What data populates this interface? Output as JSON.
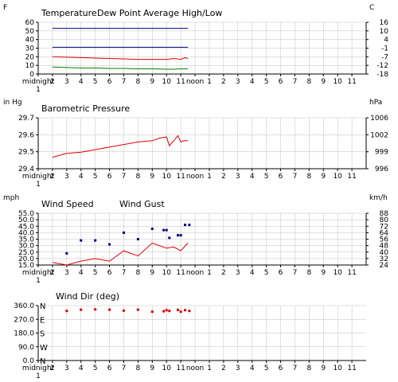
{
  "colors": {
    "red": "#e00000",
    "green": "#008000",
    "blue": "#000080",
    "grid": "#c0c0c0",
    "axis": "#000000"
  },
  "x_axis": {
    "ticks": [
      "midnight",
      "2",
      "3",
      "4",
      "5",
      "6",
      "7",
      "8",
      "9",
      "10",
      "11",
      "noon",
      "1",
      "2",
      "3",
      "4",
      "5",
      "6",
      "7",
      "8",
      "9",
      "10",
      "11"
    ],
    "sub_label": "1",
    "xlim": [
      0,
      23
    ]
  },
  "chart_data": [
    {
      "type": "line",
      "left_unit": "F",
      "right_unit": "C",
      "legend": [
        "Temperature",
        "Dew Point",
        "Average High/Low"
      ],
      "ylim": [
        0,
        60
      ],
      "y_ticks": [
        "0",
        "10",
        "20",
        "30",
        "40",
        "50",
        "60"
      ],
      "y_ticks_right": [
        "-18",
        "-12",
        "-7",
        "-1",
        "4",
        "10",
        "16"
      ],
      "series": [
        {
          "name": "Temperature",
          "x": [
            1,
            2,
            3,
            4,
            5,
            6,
            7,
            8,
            9,
            9.5,
            10,
            10.3,
            10.5
          ],
          "values": [
            20,
            19.5,
            19,
            18.5,
            18,
            17.5,
            17,
            17,
            17,
            18,
            17,
            19,
            18
          ]
        },
        {
          "name": "Dew Point",
          "x": [
            1,
            2,
            3,
            4,
            5,
            6,
            7,
            8,
            9,
            9.5,
            10,
            10.5
          ],
          "values": [
            8,
            7.5,
            7,
            7,
            6.5,
            6.5,
            6,
            6,
            5.5,
            5.5,
            6,
            6
          ]
        },
        {
          "name": "Average High",
          "x": [
            1,
            10.5
          ],
          "values": [
            53,
            53
          ]
        },
        {
          "name": "Average Low",
          "x": [
            1,
            10.5
          ],
          "values": [
            31,
            31
          ]
        }
      ]
    },
    {
      "type": "line",
      "left_unit": "in Hg",
      "right_unit": "hPa",
      "legend": [
        "Barometric Pressure"
      ],
      "ylim": [
        29.4,
        29.8
      ],
      "y_ticks": [
        "29.4",
        "29.5",
        "29.6",
        "29.7"
      ],
      "y_ticks_right": [
        "996",
        "999",
        "1002",
        "1006"
      ],
      "series": [
        {
          "name": "Barometric Pressure",
          "x": [
            1,
            2,
            3,
            4,
            5,
            6,
            7,
            8,
            8.5,
            9,
            9.2,
            9.5,
            9.8,
            10,
            10.2,
            10.5
          ],
          "values": [
            29.49,
            29.52,
            29.53,
            29.55,
            29.57,
            29.59,
            29.61,
            29.62,
            29.64,
            29.65,
            29.58,
            29.62,
            29.66,
            29.61,
            29.62,
            29.62
          ]
        }
      ]
    },
    {
      "type": "line+scatter",
      "left_unit": "mph",
      "right_unit": "km/h",
      "legend": [
        "Wind Speed",
        "Wind Gust"
      ],
      "ylim": [
        15,
        55
      ],
      "y_ticks": [
        "15.0",
        "20.0",
        "25.0",
        "30.0",
        "35.0",
        "40.0",
        "45.0",
        "50.0",
        "55.0"
      ],
      "y_ticks_right": [
        "24",
        "32",
        "40",
        "48",
        "56",
        "64",
        "72",
        "80",
        "88"
      ],
      "series": [
        {
          "name": "Wind Speed",
          "x": [
            1,
            2,
            3,
            4,
            5,
            6,
            7,
            8,
            9,
            9.5,
            10,
            10.5
          ],
          "values": [
            17,
            15,
            18,
            20,
            18,
            26,
            22,
            32,
            28,
            29,
            26,
            32
          ]
        },
        {
          "name": "Wind Gust",
          "x": [
            2,
            3,
            4,
            5,
            6,
            7,
            8,
            8.8,
            9,
            9.2,
            9.8,
            10,
            10.3,
            10.6
          ],
          "values": [
            24,
            34,
            34,
            31,
            40,
            35,
            43,
            42,
            42,
            36,
            38,
            38,
            46,
            46
          ]
        }
      ]
    },
    {
      "type": "scatter",
      "legend": [
        "Wind Dir (deg)"
      ],
      "ylim": [
        0,
        360
      ],
      "y_ticks": [
        "0.0",
        "90.0",
        "180.0",
        "270.0",
        "360.0"
      ],
      "compass": [
        "N",
        "W",
        "S",
        "E",
        "N"
      ],
      "series": [
        {
          "name": "Wind Dir (deg)",
          "x": [
            2,
            3,
            4,
            5,
            6,
            7,
            8,
            8.8,
            9,
            9.2,
            9.8,
            10,
            10.3,
            10.6
          ],
          "values": [
            325,
            333,
            335,
            333,
            327,
            333,
            320,
            323,
            330,
            325,
            332,
            320,
            330,
            325
          ]
        }
      ]
    }
  ]
}
